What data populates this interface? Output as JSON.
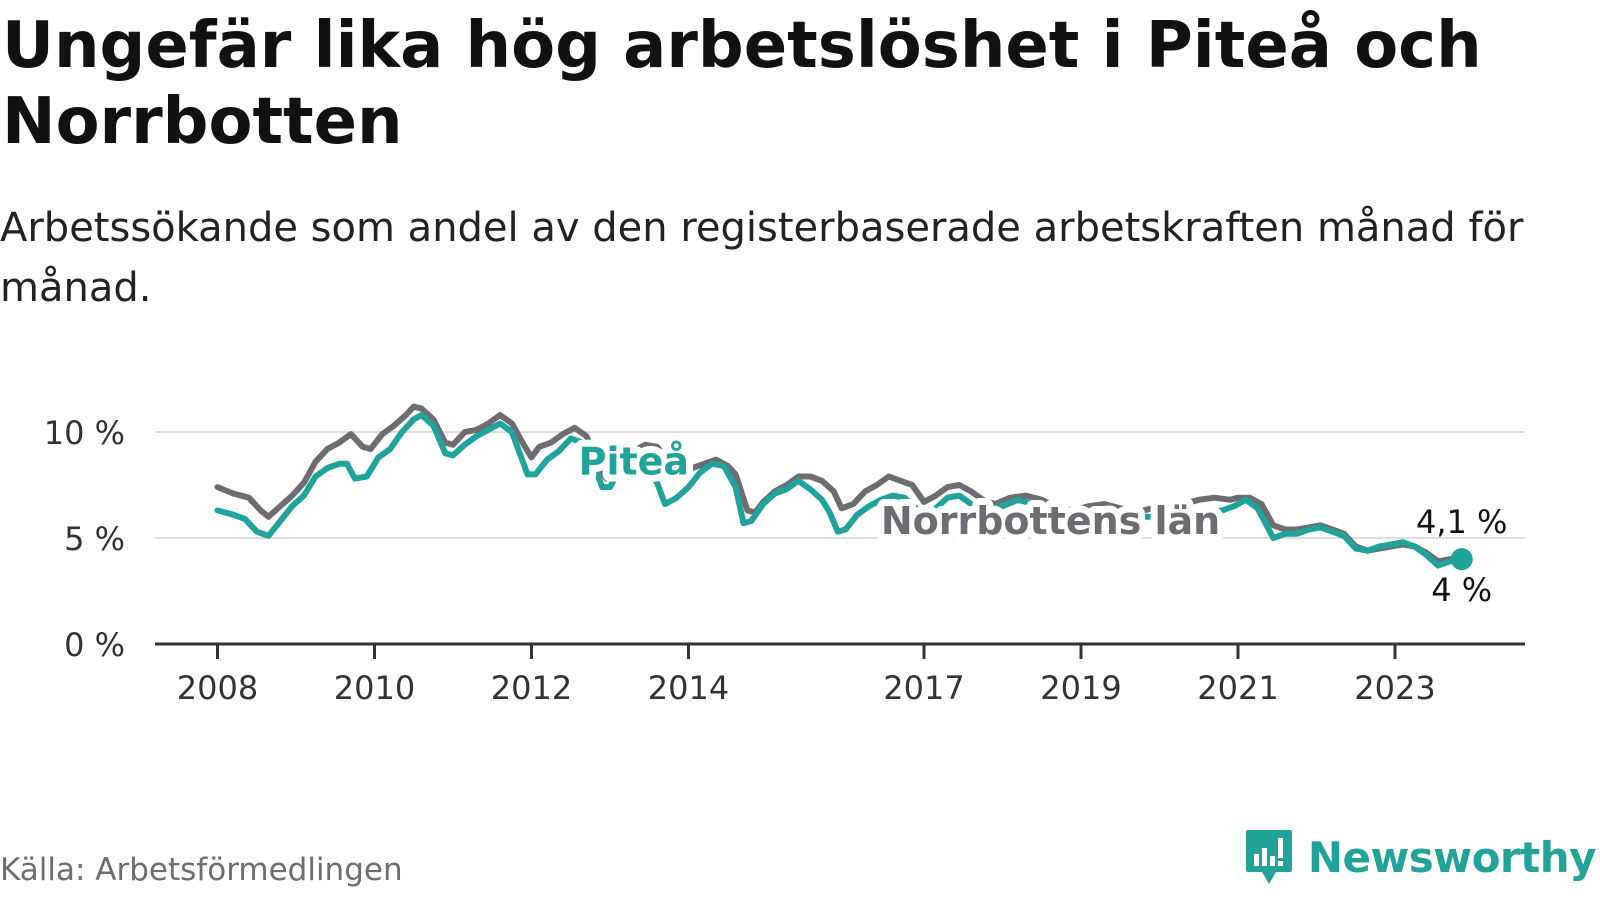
{
  "header": {
    "title": "Ungefär lika hög arbetslöshet i Piteå och Norrbotten",
    "subtitle": "Arbetssökande som andel av den registerbaserade arbetskraften månad för månad."
  },
  "footer": {
    "source": "Källa: Arbetsförmedlingen",
    "brand": "Newsworthy",
    "brand_icon": "newsworthy-logo-icon"
  },
  "colors": {
    "pitea": "#1fa39a",
    "norrbotten": "#6d6d71",
    "grid": "#dddddd",
    "axis": "#333333"
  },
  "chart_data": {
    "type": "line",
    "title": "Ungefär lika hög arbetslöshet i Piteå och Norrbotten",
    "xlabel": "",
    "ylabel": "",
    "ylim": [
      0,
      11.5
    ],
    "xlim": [
      2007.9,
      2024.6
    ],
    "y_ticks": [
      {
        "value": 0,
        "label": "0 %"
      },
      {
        "value": 5,
        "label": "5 %"
      },
      {
        "value": 10,
        "label": "10 %"
      }
    ],
    "x_ticks": [
      {
        "value": 2008,
        "label": "2008"
      },
      {
        "value": 2010,
        "label": "2010"
      },
      {
        "value": 2012,
        "label": "2012"
      },
      {
        "value": 2014,
        "label": "2014"
      },
      {
        "value": 2017,
        "label": "2017"
      },
      {
        "value": 2019,
        "label": "2019"
      },
      {
        "value": 2021,
        "label": "2021"
      },
      {
        "value": 2023,
        "label": "2023"
      }
    ],
    "grid": true,
    "series": [
      {
        "name": "Norrbottens län",
        "end_label": "4,1 %",
        "points": [
          [
            2008.0,
            7.4
          ],
          [
            2008.2,
            7.1
          ],
          [
            2008.4,
            6.9
          ],
          [
            2008.55,
            6.3
          ],
          [
            2008.65,
            6.0
          ],
          [
            2008.8,
            6.5
          ],
          [
            2008.95,
            7.0
          ],
          [
            2009.1,
            7.6
          ],
          [
            2009.25,
            8.6
          ],
          [
            2009.4,
            9.2
          ],
          [
            2009.55,
            9.5
          ],
          [
            2009.7,
            9.9
          ],
          [
            2009.85,
            9.3
          ],
          [
            2009.95,
            9.2
          ],
          [
            2010.1,
            9.9
          ],
          [
            2010.25,
            10.3
          ],
          [
            2010.4,
            10.8
          ],
          [
            2010.5,
            11.2
          ],
          [
            2010.6,
            11.1
          ],
          [
            2010.75,
            10.6
          ],
          [
            2010.9,
            9.5
          ],
          [
            2011.0,
            9.4
          ],
          [
            2011.15,
            10.0
          ],
          [
            2011.3,
            10.1
          ],
          [
            2011.45,
            10.4
          ],
          [
            2011.6,
            10.8
          ],
          [
            2011.75,
            10.4
          ],
          [
            2011.9,
            9.4
          ],
          [
            2012.0,
            8.8
          ],
          [
            2012.1,
            9.3
          ],
          [
            2012.25,
            9.5
          ],
          [
            2012.4,
            9.9
          ],
          [
            2012.55,
            10.2
          ],
          [
            2012.7,
            9.8
          ],
          [
            2012.85,
            8.4
          ],
          [
            2012.95,
            7.8
          ],
          [
            2013.1,
            8.6
          ],
          [
            2013.3,
            9.1
          ],
          [
            2013.45,
            9.4
          ],
          [
            2013.6,
            9.3
          ],
          [
            2013.75,
            8.6
          ],
          [
            2013.9,
            7.9
          ],
          [
            2014.05,
            8.3
          ],
          [
            2014.2,
            8.5
          ],
          [
            2014.35,
            8.7
          ],
          [
            2014.5,
            8.4
          ],
          [
            2014.6,
            8.0
          ],
          [
            2014.75,
            6.3
          ],
          [
            2014.85,
            6.2
          ],
          [
            2014.95,
            6.7
          ],
          [
            2015.1,
            7.2
          ],
          [
            2015.25,
            7.5
          ],
          [
            2015.4,
            7.9
          ],
          [
            2015.55,
            7.9
          ],
          [
            2015.7,
            7.7
          ],
          [
            2015.85,
            7.2
          ],
          [
            2015.95,
            6.4
          ],
          [
            2016.1,
            6.6
          ],
          [
            2016.25,
            7.2
          ],
          [
            2016.4,
            7.5
          ],
          [
            2016.55,
            7.9
          ],
          [
            2016.7,
            7.7
          ],
          [
            2016.85,
            7.5
          ],
          [
            2017.0,
            6.7
          ],
          [
            2017.15,
            7.0
          ],
          [
            2017.3,
            7.4
          ],
          [
            2017.45,
            7.5
          ],
          [
            2017.6,
            7.2
          ],
          [
            2017.75,
            6.8
          ],
          [
            2017.9,
            6.6
          ],
          [
            2018.1,
            6.9
          ],
          [
            2018.3,
            7.0
          ],
          [
            2018.5,
            6.8
          ],
          [
            2018.7,
            6.4
          ],
          [
            2018.9,
            6.3
          ],
          [
            2019.1,
            6.5
          ],
          [
            2019.3,
            6.6
          ],
          [
            2019.5,
            6.4
          ],
          [
            2019.7,
            6.2
          ],
          [
            2019.9,
            6.4
          ],
          [
            2020.1,
            6.5
          ],
          [
            2020.3,
            6.6
          ],
          [
            2020.5,
            6.8
          ],
          [
            2020.7,
            6.9
          ],
          [
            2020.9,
            6.8
          ],
          [
            2021.0,
            6.9
          ],
          [
            2021.15,
            6.9
          ],
          [
            2021.3,
            6.6
          ],
          [
            2021.45,
            5.6
          ],
          [
            2021.6,
            5.4
          ],
          [
            2021.75,
            5.4
          ],
          [
            2021.9,
            5.5
          ],
          [
            2022.05,
            5.6
          ],
          [
            2022.2,
            5.4
          ],
          [
            2022.35,
            5.2
          ],
          [
            2022.5,
            4.6
          ],
          [
            2022.65,
            4.4
          ],
          [
            2022.8,
            4.5
          ],
          [
            2022.95,
            4.6
          ],
          [
            2023.1,
            4.7
          ],
          [
            2023.25,
            4.6
          ],
          [
            2023.4,
            4.3
          ],
          [
            2023.55,
            3.9
          ],
          [
            2023.7,
            4.0
          ],
          [
            2023.85,
            4.1
          ]
        ]
      },
      {
        "name": "Piteå",
        "end_label": "4 %",
        "points": [
          [
            2008.0,
            6.3
          ],
          [
            2008.2,
            6.1
          ],
          [
            2008.35,
            5.9
          ],
          [
            2008.5,
            5.3
          ],
          [
            2008.65,
            5.1
          ],
          [
            2008.8,
            5.8
          ],
          [
            2008.95,
            6.5
          ],
          [
            2009.1,
            7.0
          ],
          [
            2009.25,
            7.9
          ],
          [
            2009.4,
            8.3
          ],
          [
            2009.55,
            8.5
          ],
          [
            2009.65,
            8.5
          ],
          [
            2009.75,
            7.8
          ],
          [
            2009.9,
            7.9
          ],
          [
            2010.05,
            8.8
          ],
          [
            2010.2,
            9.2
          ],
          [
            2010.35,
            10.0
          ],
          [
            2010.5,
            10.6
          ],
          [
            2010.6,
            10.8
          ],
          [
            2010.75,
            10.3
          ],
          [
            2010.9,
            9.0
          ],
          [
            2011.0,
            8.9
          ],
          [
            2011.15,
            9.4
          ],
          [
            2011.3,
            9.8
          ],
          [
            2011.45,
            10.1
          ],
          [
            2011.6,
            10.4
          ],
          [
            2011.75,
            10.0
          ],
          [
            2011.85,
            9.0
          ],
          [
            2011.95,
            8.0
          ],
          [
            2012.05,
            8.0
          ],
          [
            2012.2,
            8.7
          ],
          [
            2012.35,
            9.1
          ],
          [
            2012.5,
            9.7
          ],
          [
            2012.65,
            9.5
          ],
          [
            2012.8,
            8.4
          ],
          [
            2012.9,
            7.4
          ],
          [
            2013.0,
            7.4
          ],
          [
            2013.15,
            8.4
          ],
          [
            2013.3,
            8.8
          ],
          [
            2013.45,
            8.5
          ],
          [
            2013.6,
            7.6
          ],
          [
            2013.7,
            6.6
          ],
          [
            2013.85,
            6.9
          ],
          [
            2014.0,
            7.4
          ],
          [
            2014.15,
            8.1
          ],
          [
            2014.3,
            8.5
          ],
          [
            2014.45,
            8.4
          ],
          [
            2014.6,
            7.4
          ],
          [
            2014.7,
            5.7
          ],
          [
            2014.8,
            5.8
          ],
          [
            2014.95,
            6.6
          ],
          [
            2015.1,
            7.1
          ],
          [
            2015.25,
            7.3
          ],
          [
            2015.4,
            7.7
          ],
          [
            2015.55,
            7.3
          ],
          [
            2015.7,
            6.8
          ],
          [
            2015.8,
            6.2
          ],
          [
            2015.9,
            5.3
          ],
          [
            2016.0,
            5.4
          ],
          [
            2016.15,
            6.1
          ],
          [
            2016.3,
            6.5
          ],
          [
            2016.45,
            6.8
          ],
          [
            2016.6,
            7.0
          ],
          [
            2016.75,
            6.9
          ],
          [
            2016.9,
            6.4
          ],
          [
            2017.0,
            5.9
          ],
          [
            2017.15,
            6.4
          ],
          [
            2017.3,
            6.9
          ],
          [
            2017.45,
            7.0
          ],
          [
            2017.6,
            6.6
          ],
          [
            2017.8,
            6.4
          ],
          [
            2018.0,
            6.5
          ],
          [
            2018.2,
            6.8
          ],
          [
            2018.4,
            6.6
          ],
          [
            2018.6,
            6.3
          ],
          [
            2018.8,
            6.1
          ],
          [
            2019.0,
            6.2
          ],
          [
            2019.2,
            6.3
          ],
          [
            2019.4,
            6.2
          ],
          [
            2019.6,
            6.0
          ],
          [
            2019.8,
            6.0
          ],
          [
            2020.0,
            6.0
          ],
          [
            2020.2,
            6.1
          ],
          [
            2020.4,
            6.2
          ],
          [
            2020.6,
            6.2
          ],
          [
            2020.8,
            6.3
          ],
          [
            2020.95,
            6.5
          ],
          [
            2021.1,
            6.8
          ],
          [
            2021.25,
            6.4
          ],
          [
            2021.35,
            5.7
          ],
          [
            2021.45,
            5.0
          ],
          [
            2021.6,
            5.2
          ],
          [
            2021.75,
            5.2
          ],
          [
            2021.9,
            5.4
          ],
          [
            2022.05,
            5.5
          ],
          [
            2022.2,
            5.3
          ],
          [
            2022.35,
            5.1
          ],
          [
            2022.5,
            4.5
          ],
          [
            2022.65,
            4.4
          ],
          [
            2022.8,
            4.6
          ],
          [
            2022.95,
            4.7
          ],
          [
            2023.1,
            4.8
          ],
          [
            2023.25,
            4.6
          ],
          [
            2023.4,
            4.2
          ],
          [
            2023.55,
            3.7
          ],
          [
            2023.7,
            3.9
          ],
          [
            2023.85,
            4.0
          ]
        ]
      }
    ],
    "annotations": [
      {
        "text": "Piteå",
        "series": "Piteå"
      },
      {
        "text": "Norrbottens län",
        "series": "Norrbottens län"
      }
    ]
  }
}
